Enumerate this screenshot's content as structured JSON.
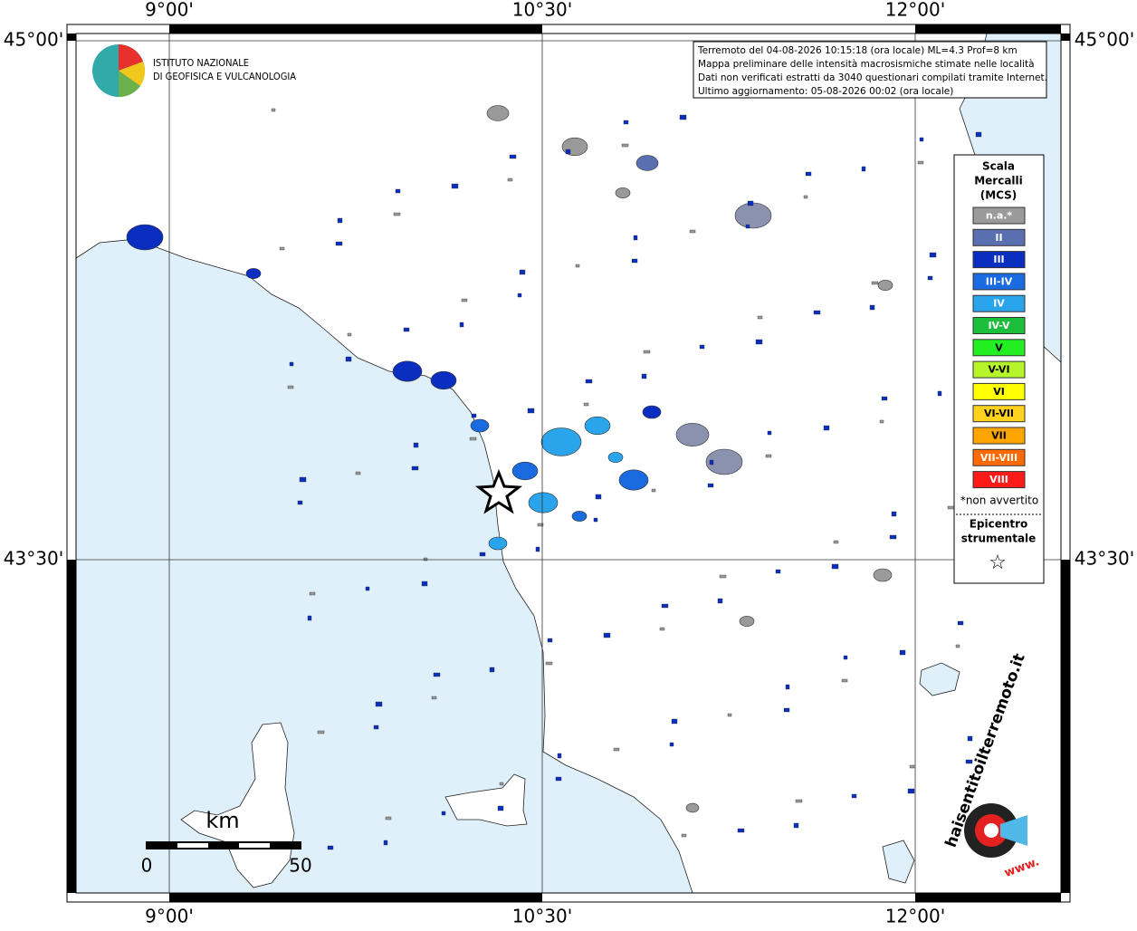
{
  "grid": {
    "lon_top": [
      "9°00'",
      "10°30'",
      "12°00'"
    ],
    "lon_bottom": [
      "9°00'",
      "10°30'",
      "12°00'"
    ],
    "lat_left": [
      "45°00'",
      "43°30'"
    ],
    "lat_right": [
      "45°00'",
      "43°30'"
    ]
  },
  "logo": {
    "line1": "ISTITUTO NAZIONALE",
    "line2": "DI GEOFISICA E VULCANOLOGIA"
  },
  "info": [
    "Terremoto del 04-08-2026 10:15:18 (ora locale) ML=4.3 Prof=8 km",
    "Mappa preliminare delle intensità macrosismiche stimate nelle località",
    "Dati non verificati estratti da 3040 questionari compilati tramite Internet.",
    "Ultimo aggiornamento: 05-08-2026 00:02 (ora locale)"
  ],
  "legend": {
    "title": [
      "Scala",
      "Mercalli",
      "(MCS)"
    ],
    "items": [
      {
        "label": "n.a.*",
        "color": "#9a9a9a"
      },
      {
        "label": "II",
        "color": "#5a6fb0"
      },
      {
        "label": "III",
        "color": "#0a2fc0"
      },
      {
        "label": "III-IV",
        "color": "#1a6ae0"
      },
      {
        "label": "IV",
        "color": "#2aa4ea"
      },
      {
        "label": "IV-V",
        "color": "#1cbf3c"
      },
      {
        "label": "V",
        "color": "#22ee22"
      },
      {
        "label": "V-VI",
        "color": "#b6f52a"
      },
      {
        "label": "VI",
        "color": "#ffff00"
      },
      {
        "label": "VI-VII",
        "color": "#ffd21f"
      },
      {
        "label": "VII",
        "color": "#ffa500"
      },
      {
        "label": "VII-VIII",
        "color": "#ff6a00"
      },
      {
        "label": "VIII",
        "color": "#ff1a1a"
      }
    ],
    "note": "*non avvertito",
    "epicentre": [
      "Epicentro",
      "strumentale"
    ],
    "star": "☆"
  },
  "scalebar": {
    "unit": "km",
    "start": "0",
    "end": "50"
  },
  "badge": {
    "text": "haisentitoilterremoto.it",
    "www": "www."
  }
}
